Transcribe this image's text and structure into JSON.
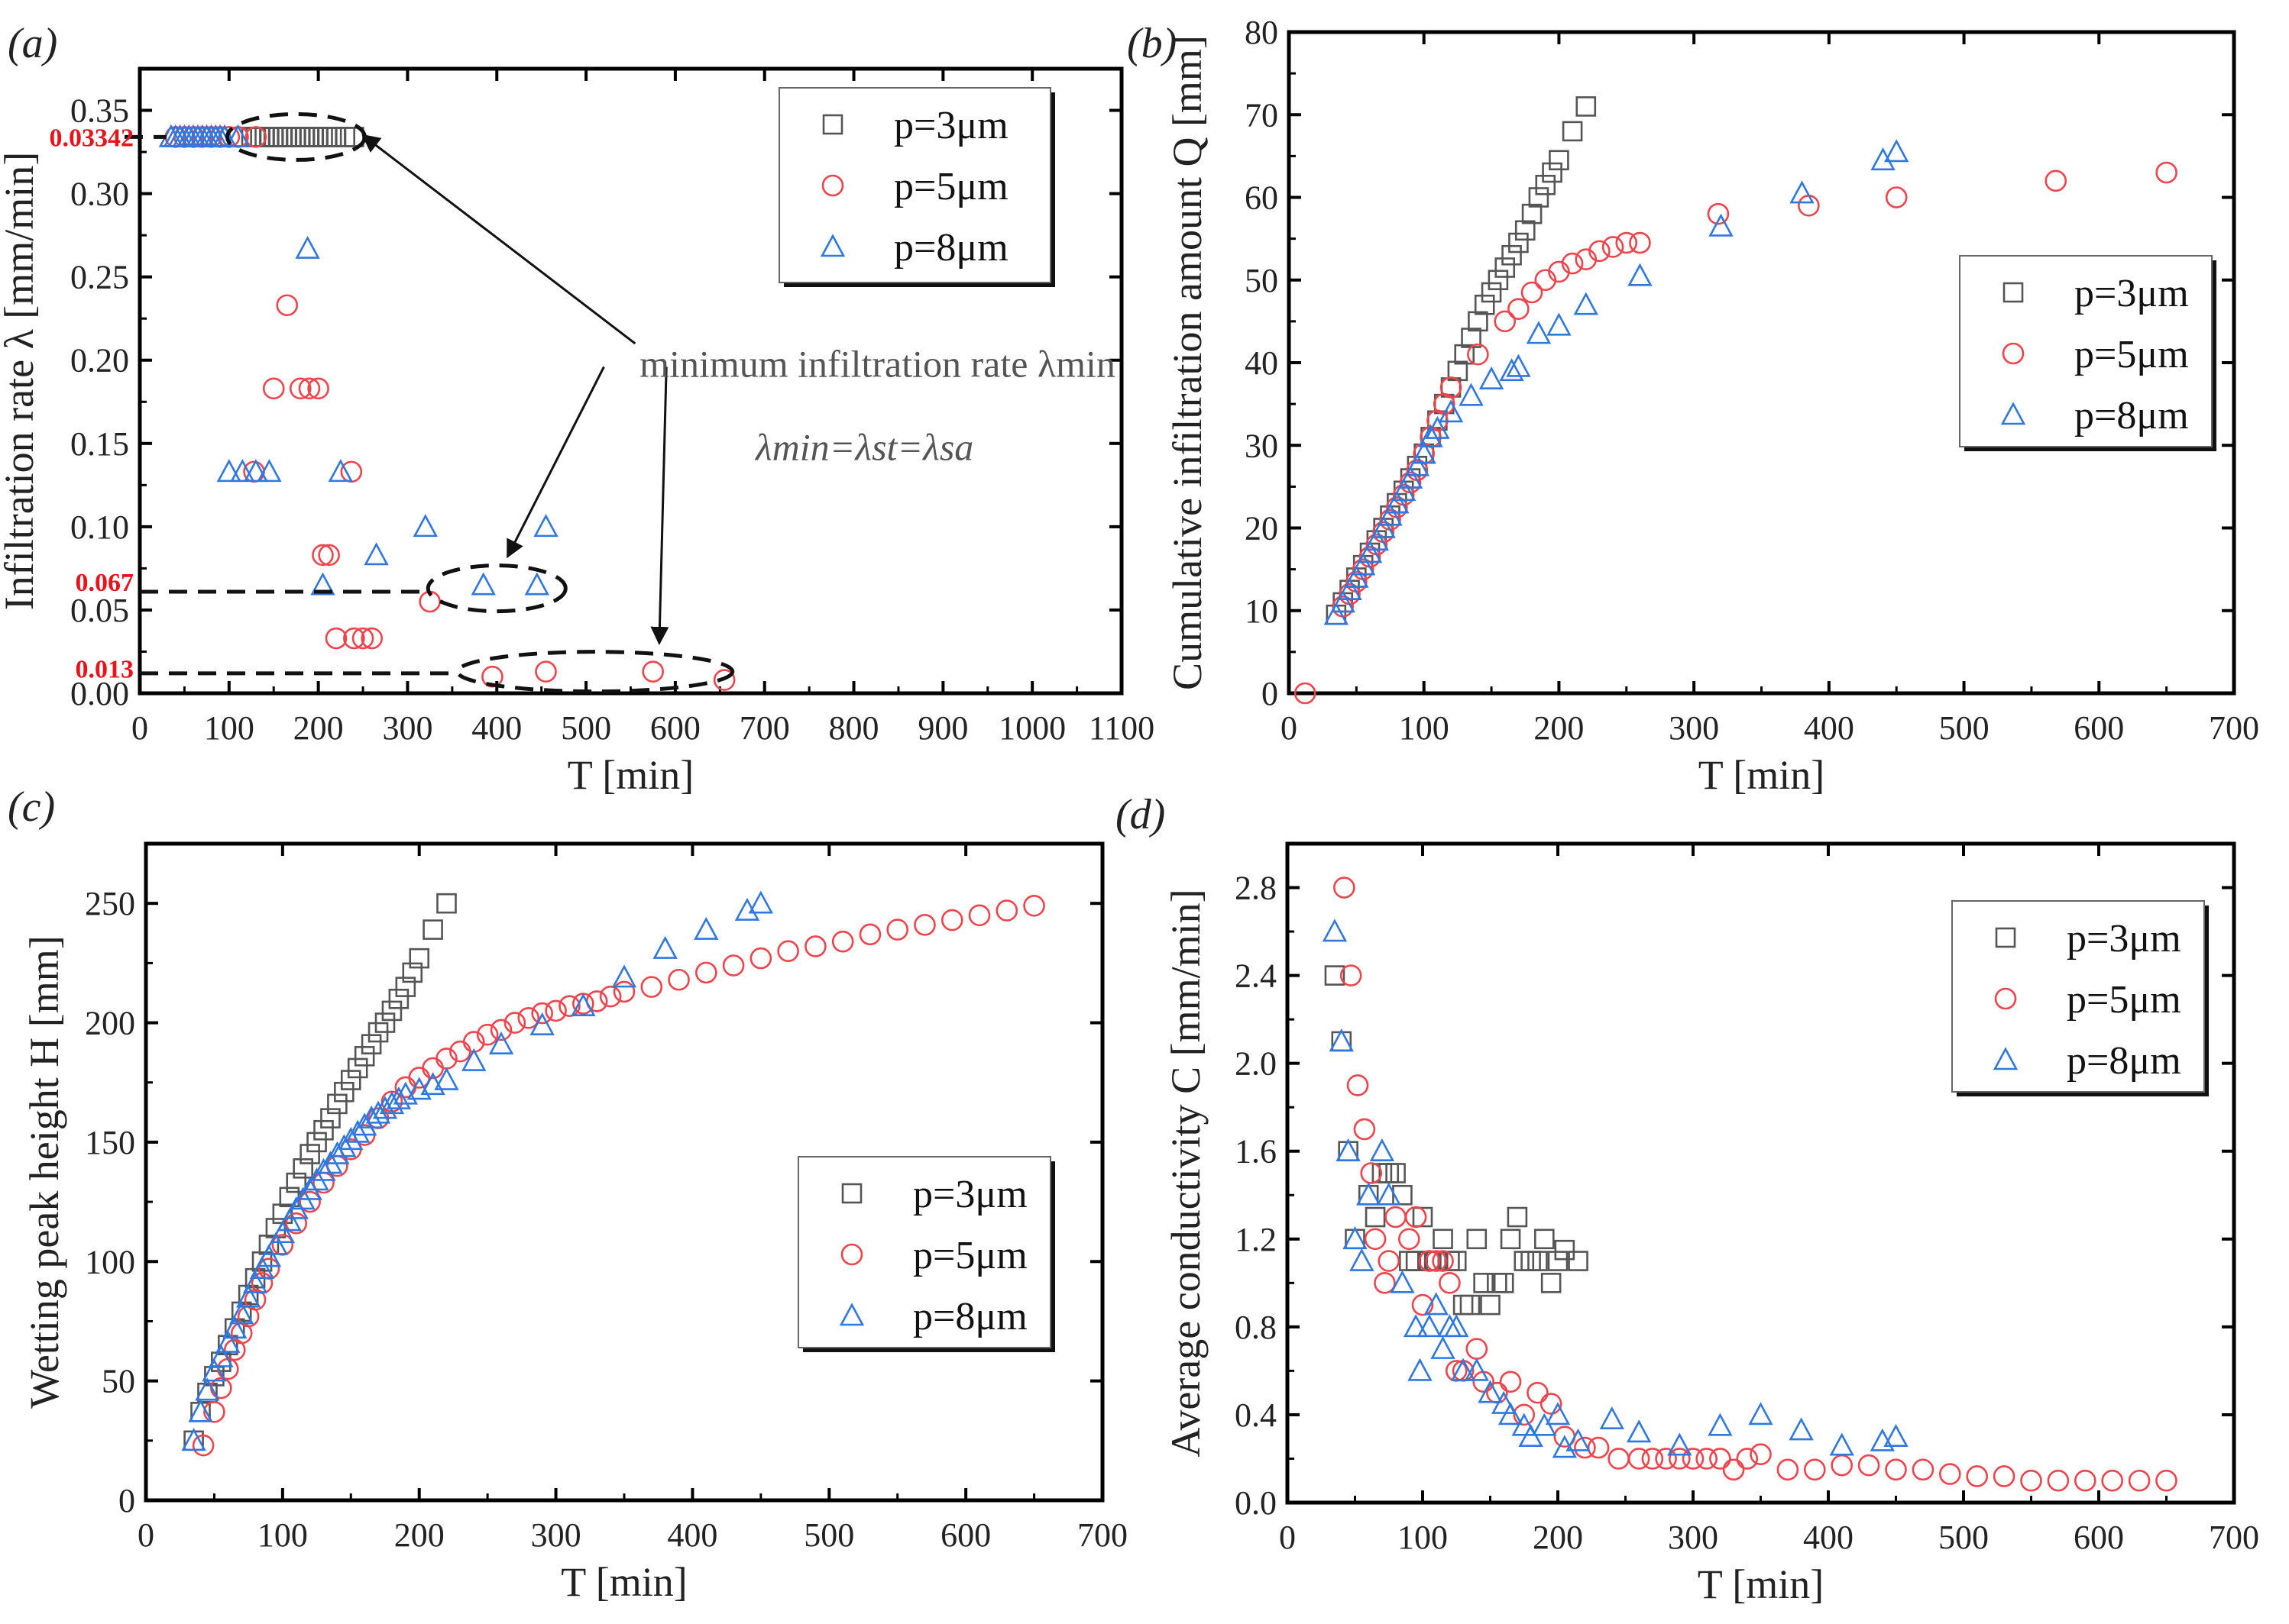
{
  "colors": {
    "p3": "#555555",
    "p5": "#f0444c",
    "p8": "#2f78e0",
    "annotation_red": "#e8141b"
  },
  "chart_data": [
    {
      "id": "a",
      "panel_label": "(a)",
      "type": "scatter",
      "xlabel": "T  [min]",
      "ylabel": "Infiltration rate λ [mm/min]",
      "xlim": [
        0,
        1100
      ],
      "ylim": [
        0,
        0.375
      ],
      "xticks": [
        0,
        100,
        200,
        300,
        400,
        500,
        600,
        700,
        800,
        900,
        1000,
        1100
      ],
      "yticks": [
        0.0,
        0.05,
        0.1,
        0.15,
        0.2,
        0.25,
        0.3,
        0.35
      ],
      "ytick_labels": [
        "0.00",
        "0.05",
        "0.10",
        "0.15",
        "0.20",
        "0.25",
        "0.30",
        "0.35"
      ],
      "legend": "top-right",
      "annotations": {
        "text": "minimum infiltration rate λmin",
        "equation": "λmin=λst=λsa",
        "red_labels": [
          "0.03342",
          "0.067",
          "0.013"
        ]
      },
      "series": [
        {
          "name": "p=3μm",
          "marker": "square",
          "color": "p3",
          "x": [
            125,
            130,
            135,
            140,
            145,
            150,
            155,
            160,
            165,
            170,
            175,
            180,
            185,
            190,
            195,
            200,
            205,
            210,
            215,
            220,
            230,
            240
          ],
          "y": [
            0.334,
            0.334,
            0.334,
            0.334,
            0.334,
            0.334,
            0.334,
            0.334,
            0.334,
            0.334,
            0.334,
            0.334,
            0.334,
            0.334,
            0.334,
            0.334,
            0.334,
            0.334,
            0.334,
            0.334,
            0.334,
            0.334
          ]
        },
        {
          "name": "p=5μm",
          "marker": "circle",
          "color": "p5",
          "x": [
            40,
            50,
            60,
            70,
            80,
            90,
            100,
            110,
            130,
            165,
            150,
            180,
            190,
            200,
            128,
            237,
            205,
            212,
            325,
            220,
            240,
            250,
            260,
            395,
            455,
            575,
            655
          ],
          "y": [
            0.334,
            0.334,
            0.334,
            0.334,
            0.334,
            0.334,
            0.334,
            0.334,
            0.334,
            0.233,
            0.183,
            0.183,
            0.183,
            0.183,
            0.133,
            0.133,
            0.083,
            0.083,
            0.055,
            0.033,
            0.033,
            0.033,
            0.033,
            0.01,
            0.013,
            0.013,
            0.008
          ]
        },
        {
          "name": "p=8μm",
          "marker": "triangle",
          "color": "p8",
          "x": [
            35,
            40,
            45,
            50,
            55,
            60,
            65,
            70,
            75,
            80,
            85,
            90,
            95,
            110,
            188,
            100,
            115,
            130,
            145,
            225,
            320,
            455,
            265,
            205,
            385,
            445
          ],
          "y": [
            0.334,
            0.334,
            0.334,
            0.334,
            0.334,
            0.334,
            0.334,
            0.334,
            0.334,
            0.334,
            0.334,
            0.334,
            0.334,
            0.334,
            0.267,
            0.133,
            0.133,
            0.133,
            0.133,
            0.133,
            0.1,
            0.1,
            0.083,
            0.065,
            0.065,
            0.065
          ]
        }
      ]
    },
    {
      "id": "b",
      "panel_label": "(b)",
      "type": "scatter",
      "xlabel": "T  [min]",
      "ylabel": "Cumulative infiltration amount Q [mm]",
      "xlim": [
        0,
        700
      ],
      "ylim": [
        0,
        80
      ],
      "xticks": [
        0,
        100,
        200,
        300,
        400,
        500,
        600,
        700
      ],
      "yticks": [
        0,
        10,
        20,
        30,
        40,
        50,
        60,
        70,
        80
      ],
      "ytick_labels": [
        "0",
        "10",
        "20",
        "30",
        "40",
        "50",
        "60",
        "70",
        "80"
      ],
      "legend": "right",
      "series": [
        {
          "name": "p=3μm",
          "marker": "square",
          "color": "p3",
          "x": [
            35,
            40,
            45,
            50,
            55,
            60,
            65,
            70,
            75,
            80,
            85,
            90,
            95,
            100,
            105,
            110,
            115,
            120,
            125,
            130,
            135,
            140,
            145,
            150,
            155,
            160,
            165,
            170,
            175,
            180,
            185,
            190,
            195,
            200,
            210,
            220
          ],
          "y": [
            9.5,
            11,
            12.5,
            14,
            15.5,
            17,
            18.5,
            20,
            21.5,
            23,
            24.5,
            26,
            27.5,
            29,
            31,
            33,
            35,
            37,
            39,
            41,
            43,
            45,
            47,
            48.5,
            50,
            51.5,
            53,
            54.5,
            56,
            58,
            60,
            61.5,
            63,
            64.5,
            68,
            71
          ]
        },
        {
          "name": "p=5μm",
          "marker": "circle",
          "color": "p5",
          "x": [
            12,
            40,
            45,
            50,
            55,
            60,
            65,
            70,
            75,
            80,
            85,
            90,
            95,
            100,
            105,
            110,
            115,
            120,
            140,
            160,
            170,
            180,
            190,
            200,
            210,
            220,
            230,
            240,
            250,
            260,
            318,
            385,
            450,
            568,
            650
          ],
          "y": [
            0,
            10.5,
            12,
            13.5,
            15,
            16.5,
            18,
            19.5,
            21,
            22.5,
            24,
            25.5,
            27,
            29,
            31,
            33,
            35,
            37,
            41,
            45,
            46.5,
            48.5,
            50,
            51,
            52,
            52.5,
            53.5,
            54,
            54.5,
            54.5,
            58,
            59,
            60,
            62,
            63
          ]
        },
        {
          "name": "p=8μm",
          "marker": "triangle",
          "color": "p8",
          "x": [
            35,
            40,
            45,
            50,
            55,
            60,
            65,
            70,
            75,
            80,
            85,
            90,
            95,
            100,
            105,
            110,
            120,
            135,
            150,
            165,
            170,
            185,
            200,
            220,
            260,
            320,
            380,
            440,
            450
          ],
          "y": [
            9.5,
            11,
            12.5,
            14,
            15.5,
            17,
            18.5,
            20,
            21.5,
            23,
            24.5,
            26,
            27.5,
            29,
            31,
            32,
            34,
            36,
            38,
            39,
            39.5,
            43.5,
            44.5,
            47,
            50.5,
            56.5,
            60.5,
            64.5,
            65.5
          ]
        }
      ]
    },
    {
      "id": "c",
      "panel_label": "(c)",
      "type": "scatter",
      "xlabel": "T  [min]",
      "ylabel": "Wetting peak height H [mm]",
      "xlim": [
        0,
        700
      ],
      "ylim": [
        0,
        275
      ],
      "xticks": [
        0,
        100,
        200,
        300,
        400,
        500,
        600,
        700
      ],
      "yticks": [
        0,
        50,
        100,
        150,
        200,
        250
      ],
      "ytick_labels": [
        "0",
        "50",
        "100",
        "150",
        "200",
        "250"
      ],
      "legend": "center-right",
      "series": [
        {
          "name": "p=3μm",
          "marker": "square",
          "color": "p3",
          "x": [
            35,
            40,
            45,
            50,
            55,
            60,
            65,
            70,
            75,
            80,
            85,
            90,
            95,
            100,
            105,
            110,
            115,
            120,
            125,
            130,
            135,
            140,
            145,
            150,
            155,
            160,
            165,
            170,
            175,
            180,
            185,
            190,
            195,
            200,
            210,
            220
          ],
          "y": [
            25,
            37,
            45,
            52,
            58,
            65,
            72,
            79,
            86,
            93,
            100,
            107,
            114,
            120,
            127,
            133,
            139,
            145,
            150,
            155,
            160,
            166,
            171,
            176,
            181,
            186,
            191,
            196,
            200,
            205,
            210,
            215,
            221,
            227,
            239,
            250
          ]
        },
        {
          "name": "p=5μm",
          "marker": "circle",
          "color": "p5",
          "x": [
            42,
            50,
            55,
            60,
            65,
            70,
            75,
            80,
            85,
            90,
            100,
            110,
            120,
            130,
            140,
            150,
            160,
            170,
            180,
            190,
            200,
            210,
            220,
            230,
            240,
            250,
            260,
            270,
            280,
            290,
            300,
            310,
            320,
            330,
            340,
            350,
            370,
            390,
            410,
            430,
            450,
            470,
            490,
            510,
            530,
            550,
            570,
            590,
            610,
            630,
            650
          ],
          "y": [
            23,
            37,
            47,
            55,
            63,
            70,
            77,
            84,
            91,
            97,
            107,
            116,
            125,
            133,
            140,
            147,
            153,
            160,
            167,
            173,
            177,
            181,
            185,
            188,
            192,
            195,
            197,
            200,
            202,
            204,
            205,
            207,
            208,
            209,
            211,
            213,
            215,
            218,
            221,
            224,
            227,
            230,
            232,
            234,
            237,
            239,
            241,
            243,
            245,
            247,
            249
          ]
        },
        {
          "name": "p=8μm",
          "marker": "triangle",
          "color": "p8",
          "x": [
            35,
            40,
            45,
            50,
            55,
            60,
            65,
            70,
            75,
            80,
            85,
            90,
            95,
            100,
            105,
            110,
            115,
            120,
            125,
            130,
            135,
            140,
            145,
            150,
            155,
            160,
            165,
            170,
            175,
            180,
            185,
            190,
            200,
            210,
            220,
            240,
            260,
            290,
            320,
            350,
            380,
            410,
            440,
            450
          ],
          "y": [
            25,
            37,
            46,
            54,
            60,
            66,
            72,
            78,
            85,
            91,
            97,
            102,
            107,
            112,
            117,
            122,
            126,
            130,
            134,
            138,
            141,
            145,
            148,
            151,
            154,
            157,
            160,
            162,
            164,
            166,
            168,
            170,
            172,
            174,
            176,
            184,
            191,
            199,
            207,
            219,
            231,
            239,
            247,
            250
          ]
        }
      ]
    },
    {
      "id": "d",
      "panel_label": "(d)",
      "type": "scatter",
      "xlabel": "T  [min]",
      "ylabel": "Average conductivity C [mm/min]",
      "xlim": [
        0,
        700
      ],
      "ylim": [
        0,
        3.0
      ],
      "xticks": [
        0,
        100,
        200,
        300,
        400,
        500,
        600,
        700
      ],
      "yticks": [
        0,
        0.4,
        0.8,
        1.2,
        1.6,
        2.0,
        2.4,
        2.8
      ],
      "ytick_labels": [
        "0.0",
        "0.4",
        "0.8",
        "1.2",
        "1.6",
        "2.0",
        "2.4",
        "2.8"
      ],
      "legend": "top-right",
      "series": [
        {
          "name": "p=3μm",
          "marker": "square",
          "color": "p3",
          "x": [
            35,
            40,
            45,
            50,
            60,
            65,
            70,
            75,
            80,
            85,
            90,
            95,
            100,
            105,
            110,
            115,
            120,
            125,
            130,
            135,
            140,
            145,
            150,
            155,
            160,
            165,
            170,
            175,
            180,
            185,
            190,
            195,
            200,
            205,
            215
          ],
          "y": [
            2.4,
            2.1,
            1.6,
            1.2,
            1.4,
            1.3,
            1.5,
            1.5,
            1.5,
            1.4,
            1.1,
            1.1,
            1.3,
            1.1,
            1.1,
            1.2,
            1.1,
            1.1,
            0.9,
            0.9,
            1.2,
            1.0,
            0.9,
            1.0,
            1.0,
            1.2,
            1.3,
            1.1,
            1.1,
            1.1,
            1.2,
            1.0,
            1.1,
            1.15,
            1.1
          ]
        },
        {
          "name": "p=5μm",
          "marker": "circle",
          "color": "p5",
          "x": [
            42,
            47,
            52,
            57,
            62,
            65,
            72,
            75,
            80,
            90,
            95,
            100,
            105,
            110,
            115,
            120,
            125,
            130,
            140,
            145,
            155,
            165,
            175,
            185,
            195,
            205,
            220,
            230,
            245,
            260,
            270,
            280,
            290,
            300,
            310,
            320,
            330,
            340,
            350,
            370,
            390,
            410,
            430,
            450,
            470,
            490,
            510,
            530,
            550,
            570,
            590,
            610,
            630,
            650
          ],
          "y": [
            2.8,
            2.4,
            1.9,
            1.7,
            1.5,
            1.2,
            1.0,
            1.1,
            1.3,
            1.2,
            1.3,
            0.9,
            1.1,
            1.1,
            1.1,
            1.0,
            0.6,
            0.6,
            0.7,
            0.55,
            0.5,
            0.55,
            0.4,
            0.5,
            0.45,
            0.3,
            0.25,
            0.25,
            0.2,
            0.2,
            0.2,
            0.2,
            0.2,
            0.2,
            0.2,
            0.2,
            0.15,
            0.2,
            0.22,
            0.15,
            0.15,
            0.17,
            0.17,
            0.15,
            0.15,
            0.13,
            0.12,
            0.12,
            0.1,
            0.1,
            0.1,
            0.1,
            0.1,
            0.1
          ]
        },
        {
          "name": "p=8μm",
          "marker": "triangle",
          "color": "p8",
          "x": [
            35,
            40,
            45,
            50,
            55,
            60,
            70,
            75,
            85,
            95,
            98,
            105,
            110,
            115,
            120,
            125,
            130,
            140,
            150,
            160,
            165,
            175,
            180,
            190,
            200,
            205,
            215,
            240,
            260,
            290,
            320,
            350,
            380,
            410,
            440,
            450
          ],
          "y": [
            2.6,
            2.1,
            1.6,
            1.2,
            1.1,
            1.4,
            1.6,
            1.4,
            1.0,
            0.8,
            0.6,
            0.8,
            0.9,
            0.7,
            0.8,
            0.8,
            0.6,
            0.6,
            0.5,
            0.45,
            0.4,
            0.35,
            0.3,
            0.35,
            0.4,
            0.25,
            0.28,
            0.38,
            0.32,
            0.26,
            0.35,
            0.4,
            0.33,
            0.26,
            0.28,
            0.3
          ]
        }
      ]
    }
  ]
}
